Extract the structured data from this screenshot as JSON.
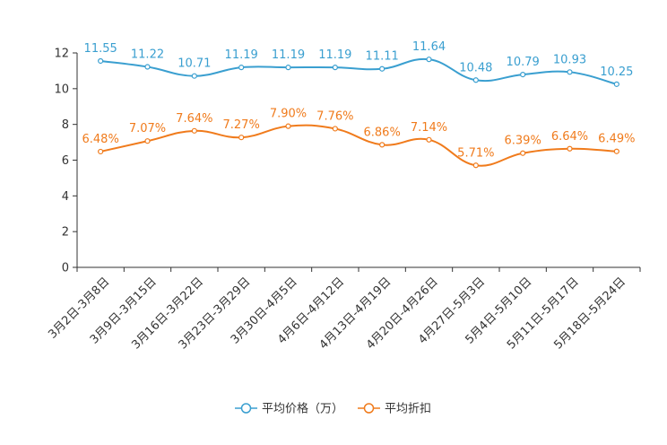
{
  "chart_data": {
    "type": "line",
    "title": "",
    "xlabel": "",
    "ylabel": "",
    "ylim": [
      0,
      12
    ],
    "yticks": [
      0,
      2,
      4,
      6,
      8,
      10,
      12
    ],
    "grid": false,
    "legend_position": "bottom-center",
    "categories": [
      "3月2日-3月8日",
      "3月9日-3月15日",
      "3月16日-3月22日",
      "3月23日-3月29日",
      "3月30日-4月5日",
      "4月6日-4月12日",
      "4月13日-4月19日",
      "4月20日-4月26日",
      "4月27日-5月3日",
      "5月4日-5月10日",
      "5月11日-5月17日",
      "5月18日-5月24日"
    ],
    "series": [
      {
        "name": "平均价格（万）",
        "color": "#3a9fd0",
        "values": [
          11.55,
          11.22,
          10.71,
          11.19,
          11.19,
          11.19,
          11.11,
          11.64,
          10.48,
          10.79,
          10.93,
          10.25
        ],
        "labels": [
          "11.55",
          "11.22",
          "10.71",
          "11.19",
          "11.19",
          "11.19",
          "11.11",
          "11.64",
          "10.48",
          "10.79",
          "10.93",
          "10.25"
        ]
      },
      {
        "name": "平均折扣",
        "color": "#f07b1c",
        "values": [
          6.48,
          7.07,
          7.64,
          7.27,
          7.9,
          7.76,
          6.86,
          7.14,
          5.71,
          6.39,
          6.64,
          6.49
        ],
        "labels": [
          "6.48%",
          "7.07%",
          "7.64%",
          "7.27%",
          "7.90%",
          "7.76%",
          "6.86%",
          "7.14%",
          "5.71%",
          "6.39%",
          "6.64%",
          "6.49%"
        ]
      }
    ]
  }
}
